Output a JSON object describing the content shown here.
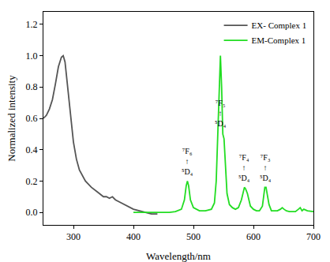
{
  "chart_data": {
    "type": "line",
    "x_label": "Wavelength/nm",
    "y_label": "Normalized intensity",
    "xlim": [
      250,
      700
    ],
    "xticks": [
      300,
      400,
      500,
      600,
      700
    ],
    "ylim": [
      -0.08,
      1.28
    ],
    "yticks": [
      {
        "value": 0,
        "label": "0.0"
      },
      {
        "value": 0.2,
        "label": "0.2"
      },
      {
        "value": 0.4,
        "label": "0.4"
      },
      {
        "value": 0.6,
        "label": "0.6"
      },
      {
        "value": 0.8,
        "label": "0.8"
      },
      {
        "value": 1,
        "label": "1.0"
      },
      {
        "value": 1.2,
        "label": "1.2"
      }
    ],
    "grid": false,
    "legend": "top right",
    "series": [
      {
        "name": "EX- Complex 1",
        "color": "#555555",
        "x": [
          250,
          255,
          260,
          265,
          270,
          275,
          280,
          283,
          286,
          290,
          295,
          300,
          305,
          310,
          320,
          330,
          340,
          350,
          355,
          360,
          365,
          370,
          375,
          380,
          390,
          400,
          410,
          420,
          430,
          440
        ],
        "values": [
          0.6,
          0.62,
          0.66,
          0.72,
          0.82,
          0.93,
          0.99,
          1.0,
          0.96,
          0.82,
          0.62,
          0.45,
          0.34,
          0.27,
          0.2,
          0.16,
          0.13,
          0.1,
          0.1,
          0.09,
          0.1,
          0.08,
          0.07,
          0.06,
          0.04,
          0.02,
          0.01,
          0.0,
          -0.01,
          -0.01
        ]
      },
      {
        "name": "EM-Complex 1",
        "color": "#22dd22",
        "x": [
          400,
          420,
          440,
          460,
          470,
          480,
          485,
          488,
          490,
          492,
          495,
          500,
          510,
          520,
          530,
          535,
          538,
          541,
          543,
          545,
          547,
          549,
          551,
          553,
          556,
          560,
          565,
          570,
          575,
          580,
          583,
          585,
          587,
          590,
          595,
          600,
          605,
          610,
          615,
          617,
          619,
          621,
          623,
          626,
          630,
          640,
          645,
          648,
          651,
          655,
          660,
          670,
          675,
          678,
          681,
          684,
          690,
          700
        ],
        "values": [
          0,
          0,
          0,
          0,
          0.005,
          0.02,
          0.08,
          0.17,
          0.2,
          0.17,
          0.08,
          0.03,
          0.01,
          0.01,
          0.02,
          0.06,
          0.2,
          0.55,
          0.85,
          1.0,
          0.8,
          0.5,
          0.47,
          0.3,
          0.12,
          0.05,
          0.03,
          0.02,
          0.03,
          0.08,
          0.14,
          0.16,
          0.15,
          0.12,
          0.04,
          0.02,
          0.01,
          0.01,
          0.04,
          0.1,
          0.16,
          0.16,
          0.12,
          0.05,
          0.01,
          0.01,
          0.02,
          0.03,
          0.02,
          0.01,
          0.005,
          0.005,
          0.02,
          0.03,
          0.01,
          0.02,
          0.01,
          0.005
        ]
      }
    ],
    "annotations": [
      {
        "text": "⁷F₆\n↑\n⁵D₄",
        "x": 490,
        "y": 0.22
      },
      {
        "text": "⁷F₅\n↑\n⁵D₄",
        "x": 545,
        "y": 0.53
      },
      {
        "text": "⁷F₄\n↑\n⁵D₄",
        "x": 585,
        "y": 0.18
      },
      {
        "text": "⁷F₃\n↑\n⁵D₄",
        "x": 620,
        "y": 0.18
      }
    ]
  }
}
